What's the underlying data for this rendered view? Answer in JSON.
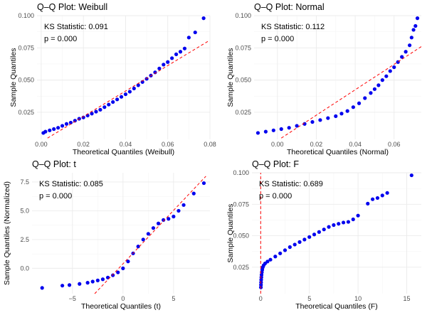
{
  "chart_data": [
    {
      "type": "scatter",
      "title": "Q–Q Plot: Weibull",
      "xlabel": "Theoretical Quantiles (Weibull)",
      "ylabel": "Sample Quantiles",
      "xlim": [
        -0.002,
        0.08
      ],
      "ylim": [
        0.004,
        0.1
      ],
      "x_ticks": [
        0.0,
        0.02,
        0.04,
        0.06,
        0.08
      ],
      "x_tick_labels": [
        "0.00",
        "0.02",
        "0.04",
        "0.06",
        "0.08"
      ],
      "y_ticks": [
        0.025,
        0.05,
        0.075,
        0.1
      ],
      "y_tick_labels": [
        "0.025",
        "0.050",
        "0.075",
        "0.100"
      ],
      "annotations": [
        "KS Statistic: 0.091",
        "p = 0.000"
      ],
      "reference_line": [
        [
          0.003,
          0.005
        ],
        [
          0.079,
          0.08
        ]
      ],
      "points": [
        [
          0.001,
          0.009
        ],
        [
          0.002,
          0.01
        ],
        [
          0.004,
          0.011
        ],
        [
          0.006,
          0.012
        ],
        [
          0.008,
          0.013
        ],
        [
          0.01,
          0.0145
        ],
        [
          0.012,
          0.016
        ],
        [
          0.014,
          0.017
        ],
        [
          0.016,
          0.0185
        ],
        [
          0.018,
          0.02
        ],
        [
          0.02,
          0.021
        ],
        [
          0.022,
          0.0225
        ],
        [
          0.024,
          0.024
        ],
        [
          0.026,
          0.0255
        ],
        [
          0.028,
          0.027
        ],
        [
          0.03,
          0.029
        ],
        [
          0.032,
          0.031
        ],
        [
          0.034,
          0.033
        ],
        [
          0.036,
          0.035
        ],
        [
          0.038,
          0.037
        ],
        [
          0.04,
          0.039
        ],
        [
          0.042,
          0.041
        ],
        [
          0.044,
          0.0435
        ],
        [
          0.046,
          0.046
        ],
        [
          0.048,
          0.0485
        ],
        [
          0.05,
          0.051
        ],
        [
          0.052,
          0.0535
        ],
        [
          0.054,
          0.056
        ],
        [
          0.056,
          0.059
        ],
        [
          0.058,
          0.062
        ],
        [
          0.06,
          0.064
        ],
        [
          0.062,
          0.067
        ],
        [
          0.064,
          0.07
        ],
        [
          0.066,
          0.072
        ],
        [
          0.068,
          0.0745
        ],
        [
          0.07,
          0.083
        ],
        [
          0.073,
          0.087
        ],
        [
          0.077,
          0.098
        ]
      ]
    },
    {
      "type": "scatter",
      "title": "Q–Q Plot: Normal",
      "xlabel": "Theoretical Quantiles (Normal)",
      "ylabel": "Sample Quantiles",
      "xlim": [
        -0.012,
        0.074
      ],
      "ylim": [
        0.004,
        0.1
      ],
      "x_ticks": [
        0.0,
        0.02,
        0.04,
        0.06
      ],
      "x_tick_labels": [
        "0.00",
        "0.02",
        "0.04",
        "0.06"
      ],
      "y_ticks": [
        0.025,
        0.05,
        0.075,
        0.1
      ],
      "y_tick_labels": [
        "0.025",
        "0.050",
        "0.075",
        "0.100"
      ],
      "annotations": [
        "KS Statistic: 0.112",
        "p = 0.000"
      ],
      "reference_line": [
        [
          0.002,
          0.005
        ],
        [
          0.074,
          0.076
        ]
      ],
      "points": [
        [
          -0.01,
          0.009
        ],
        [
          -0.006,
          0.01
        ],
        [
          -0.002,
          0.011
        ],
        [
          0.002,
          0.012
        ],
        [
          0.006,
          0.013
        ],
        [
          0.01,
          0.0145
        ],
        [
          0.014,
          0.016
        ],
        [
          0.018,
          0.0175
        ],
        [
          0.022,
          0.019
        ],
        [
          0.026,
          0.0205
        ],
        [
          0.03,
          0.022
        ],
        [
          0.033,
          0.024
        ],
        [
          0.036,
          0.026
        ],
        [
          0.039,
          0.029
        ],
        [
          0.042,
          0.032
        ],
        [
          0.045,
          0.036
        ],
        [
          0.048,
          0.04
        ],
        [
          0.05,
          0.043
        ],
        [
          0.052,
          0.046
        ],
        [
          0.054,
          0.05
        ],
        [
          0.056,
          0.053
        ],
        [
          0.058,
          0.057
        ],
        [
          0.06,
          0.06
        ],
        [
          0.062,
          0.064
        ],
        [
          0.064,
          0.068
        ],
        [
          0.066,
          0.072
        ],
        [
          0.068,
          0.077
        ],
        [
          0.069,
          0.083
        ],
        [
          0.07,
          0.089
        ],
        [
          0.071,
          0.092
        ],
        [
          0.072,
          0.098
        ]
      ]
    },
    {
      "type": "scatter",
      "title": "Q–Q Plot: t",
      "xlabel": "Theoretical Quantiles (t)",
      "ylabel": "Sample Quantiles (Normalized)",
      "xlim": [
        -9,
        8.6
      ],
      "ylim": [
        -2.2,
        8.3
      ],
      "x_ticks": [
        -5,
        0,
        5
      ],
      "x_tick_labels": [
        "−5",
        "0",
        "5"
      ],
      "y_ticks": [
        0,
        2.5,
        5,
        7.5
      ],
      "y_tick_labels": [
        "0.0",
        "2.5",
        "5.0",
        "7.5"
      ],
      "annotations": [
        "KS Statistic: 0.085",
        "p = 0.000"
      ],
      "reference_line": [
        [
          -2.8,
          -2.2
        ],
        [
          8.2,
          8.0
        ]
      ],
      "points": [
        [
          -8.0,
          -1.7
        ],
        [
          -6.0,
          -1.5
        ],
        [
          -5.3,
          -1.45
        ],
        [
          -4.3,
          -1.35
        ],
        [
          -3.5,
          -1.25
        ],
        [
          -3.0,
          -1.15
        ],
        [
          -2.5,
          -1.05
        ],
        [
          -2.0,
          -0.95
        ],
        [
          -1.5,
          -0.8
        ],
        [
          -1.0,
          -0.6
        ],
        [
          -0.5,
          -0.35
        ],
        [
          0.0,
          0.0
        ],
        [
          0.5,
          0.6
        ],
        [
          1.0,
          1.3
        ],
        [
          1.5,
          1.9
        ],
        [
          2.0,
          2.5
        ],
        [
          2.5,
          3.0
        ],
        [
          3.0,
          3.5
        ],
        [
          3.5,
          3.9
        ],
        [
          4.0,
          4.2
        ],
        [
          4.5,
          4.3
        ],
        [
          5.0,
          4.5
        ],
        [
          5.5,
          5.0
        ],
        [
          6.0,
          5.5
        ],
        [
          7.0,
          6.5
        ],
        [
          8.0,
          7.4
        ]
      ]
    },
    {
      "type": "scatter",
      "title": "Q–Q Plot: F",
      "xlabel": "Theoretical Quantiles (F)",
      "ylabel": "Sample Quantiles",
      "xlim": [
        -0.9,
        16.5
      ],
      "ylim": [
        0.004,
        0.1
      ],
      "x_ticks": [
        0,
        5,
        10,
        15
      ],
      "x_tick_labels": [
        "0",
        "5",
        "10",
        "15"
      ],
      "y_ticks": [
        0.025,
        0.05,
        0.075,
        0.1
      ],
      "y_tick_labels": [
        "0.025",
        "0.050",
        "0.075",
        "0.100"
      ],
      "annotations": [
        "KS Statistic: 0.689",
        "p = 0.000"
      ],
      "reference_line": [
        [
          0.0,
          0.004
        ],
        [
          0.0,
          0.1
        ]
      ],
      "points": [
        [
          0.02,
          0.009
        ],
        [
          0.03,
          0.011
        ],
        [
          0.04,
          0.013
        ],
        [
          0.05,
          0.015
        ],
        [
          0.07,
          0.017
        ],
        [
          0.09,
          0.019
        ],
        [
          0.12,
          0.021
        ],
        [
          0.16,
          0.023
        ],
        [
          0.22,
          0.025
        ],
        [
          0.3,
          0.0265
        ],
        [
          0.45,
          0.028
        ],
        [
          0.7,
          0.0295
        ],
        [
          1.0,
          0.031
        ],
        [
          1.5,
          0.0335
        ],
        [
          2.0,
          0.036
        ],
        [
          2.5,
          0.0385
        ],
        [
          3.0,
          0.041
        ],
        [
          3.5,
          0.043
        ],
        [
          4.0,
          0.045
        ],
        [
          4.5,
          0.047
        ],
        [
          5.0,
          0.049
        ],
        [
          5.5,
          0.051
        ],
        [
          6.0,
          0.053
        ],
        [
          6.5,
          0.055
        ],
        [
          7.0,
          0.057
        ],
        [
          7.5,
          0.0585
        ],
        [
          8.0,
          0.0595
        ],
        [
          8.5,
          0.0605
        ],
        [
          9.0,
          0.061
        ],
        [
          9.5,
          0.063
        ],
        [
          10.0,
          0.066
        ],
        [
          11.0,
          0.0755
        ],
        [
          11.5,
          0.079
        ],
        [
          12.0,
          0.08
        ],
        [
          12.5,
          0.082
        ],
        [
          13.0,
          0.084
        ],
        [
          15.5,
          0.098
        ]
      ]
    }
  ]
}
